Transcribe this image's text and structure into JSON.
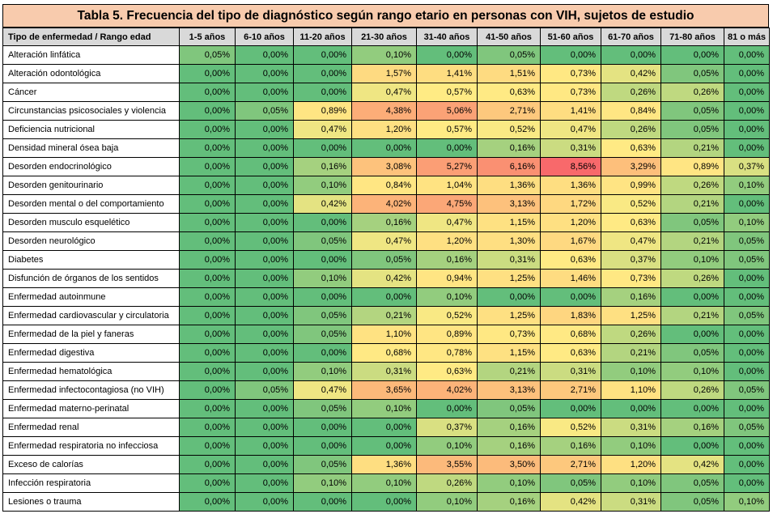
{
  "title": "Tabla 5. Frecuencia del tipo de diagnóstico según rango etario en personas con VIH, sujetos de estudio",
  "header": {
    "first": "Tipo de enfermedad / Rango edad",
    "columns": [
      "1-5 años",
      "6-10 años",
      "11-20 años",
      "21-30 años",
      "31-40 años",
      "41-50 años",
      "51-60 años",
      "61-70 años",
      "71-80 años",
      "81 o más"
    ]
  },
  "rows": [
    {
      "label": "Alteración linfática",
      "values": [
        "0,05%",
        "0,00%",
        "0,00%",
        "0,10%",
        "0,00%",
        "0,05%",
        "0,00%",
        "0,00%",
        "0,00%",
        "0,00%"
      ]
    },
    {
      "label": "Alteración odontológica",
      "values": [
        "0,00%",
        "0,00%",
        "0,00%",
        "1,57%",
        "1,41%",
        "1,51%",
        "0,73%",
        "0,42%",
        "0,05%",
        "0,00%"
      ]
    },
    {
      "label": "Cáncer",
      "values": [
        "0,00%",
        "0,00%",
        "0,00%",
        "0,47%",
        "0,57%",
        "0,63%",
        "0,73%",
        "0,26%",
        "0,26%",
        "0,00%"
      ]
    },
    {
      "label": "Circunstancias psicosociales y violencia",
      "values": [
        "0,00%",
        "0,05%",
        "0,89%",
        "4,38%",
        "5,06%",
        "2,71%",
        "1,41%",
        "0,84%",
        "0,05%",
        "0,00%"
      ]
    },
    {
      "label": "Deficiencia nutricional",
      "values": [
        "0,00%",
        "0,00%",
        "0,47%",
        "1,20%",
        "0,57%",
        "0,52%",
        "0,47%",
        "0,26%",
        "0,05%",
        "0,00%"
      ]
    },
    {
      "label": "Densidad mineral ósea baja",
      "values": [
        "0,00%",
        "0,00%",
        "0,00%",
        "0,00%",
        "0,00%",
        "0,16%",
        "0,31%",
        "0,63%",
        "0,21%",
        "0,00%"
      ]
    },
    {
      "label": "Desorden endocrinológico",
      "values": [
        "0,00%",
        "0,00%",
        "0,16%",
        "3,08%",
        "5,27%",
        "6,16%",
        "8,56%",
        "3,29%",
        "0,89%",
        "0,37%"
      ]
    },
    {
      "label": "Desorden genitourinario",
      "values": [
        "0,00%",
        "0,00%",
        "0,10%",
        "0,84%",
        "1,04%",
        "1,36%",
        "1,36%",
        "0,99%",
        "0,26%",
        "0,10%"
      ]
    },
    {
      "label": "Desorden mental o del comportamiento",
      "values": [
        "0,00%",
        "0,00%",
        "0,42%",
        "4,02%",
        "4,75%",
        "3,13%",
        "1,72%",
        "0,52%",
        "0,21%",
        "0,00%"
      ]
    },
    {
      "label": "Desorden musculo esquelético",
      "values": [
        "0,00%",
        "0,00%",
        "0,00%",
        "0,16%",
        "0,47%",
        "1,15%",
        "1,20%",
        "0,63%",
        "0,05%",
        "0,10%"
      ]
    },
    {
      "label": "Desorden neurológico",
      "values": [
        "0,00%",
        "0,00%",
        "0,05%",
        "0,47%",
        "1,20%",
        "1,30%",
        "1,67%",
        "0,47%",
        "0,21%",
        "0,05%"
      ]
    },
    {
      "label": "Diabetes",
      "values": [
        "0,00%",
        "0,00%",
        "0,00%",
        "0,05%",
        "0,16%",
        "0,31%",
        "0,63%",
        "0,37%",
        "0,10%",
        "0,05%"
      ]
    },
    {
      "label": "Disfunción de órganos de los sentidos",
      "values": [
        "0,00%",
        "0,00%",
        "0,10%",
        "0,42%",
        "0,94%",
        "1,25%",
        "1,46%",
        "0,73%",
        "0,26%",
        "0,00%"
      ]
    },
    {
      "label": "Enfermedad autoinmune",
      "values": [
        "0,00%",
        "0,00%",
        "0,00%",
        "0,00%",
        "0,10%",
        "0,00%",
        "0,00%",
        "0,16%",
        "0,00%",
        "0,00%"
      ]
    },
    {
      "label": "Enfermedad cardiovascular y circulatoria",
      "values": [
        "0,00%",
        "0,00%",
        "0,05%",
        "0,21%",
        "0,52%",
        "1,25%",
        "1,83%",
        "1,25%",
        "0,21%",
        "0,05%"
      ]
    },
    {
      "label": "Enfermedad de la piel y faneras",
      "values": [
        "0,00%",
        "0,00%",
        "0,05%",
        "1,10%",
        "0,89%",
        "0,73%",
        "0,68%",
        "0,26%",
        "0,00%",
        "0,00%"
      ]
    },
    {
      "label": "Enfermedad digestiva",
      "values": [
        "0,00%",
        "0,00%",
        "0,00%",
        "0,68%",
        "0,78%",
        "1,15%",
        "0,63%",
        "0,21%",
        "0,05%",
        "0,00%"
      ]
    },
    {
      "label": "Enfermedad hematológica",
      "values": [
        "0,00%",
        "0,00%",
        "0,10%",
        "0,31%",
        "0,63%",
        "0,21%",
        "0,31%",
        "0,10%",
        "0,10%",
        "0,00%"
      ]
    },
    {
      "label": "Enfermedad infectocontagiosa (no VIH)",
      "values": [
        "0,00%",
        "0,05%",
        "0,47%",
        "3,65%",
        "4,02%",
        "3,13%",
        "2,71%",
        "1,10%",
        "0,26%",
        "0,05%"
      ]
    },
    {
      "label": "Enfermedad materno-perinatal",
      "values": [
        "0,00%",
        "0,00%",
        "0,05%",
        "0,10%",
        "0,00%",
        "0,05%",
        "0,00%",
        "0,00%",
        "0,00%",
        "0,00%"
      ]
    },
    {
      "label": "Enfermedad renal",
      "values": [
        "0,00%",
        "0,00%",
        "0,00%",
        "0,00%",
        "0,37%",
        "0,16%",
        "0,52%",
        "0,31%",
        "0,16%",
        "0,05%"
      ]
    },
    {
      "label": "Enfermedad respiratoria no infecciosa",
      "values": [
        "0,00%",
        "0,00%",
        "0,00%",
        "0,00%",
        "0,10%",
        "0,16%",
        "0,16%",
        "0,10%",
        "0,00%",
        "0,00%"
      ]
    },
    {
      "label": "Exceso de calorías",
      "values": [
        "0,00%",
        "0,00%",
        "0,05%",
        "1,36%",
        "3,55%",
        "3,50%",
        "2,71%",
        "1,20%",
        "0,42%",
        "0,00%"
      ]
    },
    {
      "label": "Infección respiratoria",
      "values": [
        "0,00%",
        "0,00%",
        "0,10%",
        "0,10%",
        "0,26%",
        "0,10%",
        "0,05%",
        "0,10%",
        "0,05%",
        "0,00%"
      ]
    },
    {
      "label": "Lesiones o trauma",
      "values": [
        "0,00%",
        "0,00%",
        "0,00%",
        "0,00%",
        "0,10%",
        "0,16%",
        "0,42%",
        "0,31%",
        "0,05%",
        "0,10%"
      ]
    }
  ],
  "colors": {
    "title_bg": "#f8cbad",
    "header_bg": "#d9d9d9",
    "scale_low": "#63be7b",
    "scale_mid": "#ffeb84",
    "scale_high": "#f8696b"
  }
}
